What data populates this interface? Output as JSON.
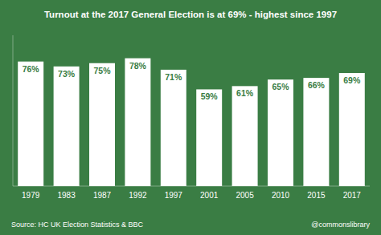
{
  "chart_data": {
    "type": "bar",
    "title": "Turnout at the 2017 General Election is at 69% - highest since 1997",
    "categories": [
      "1979",
      "1983",
      "1987",
      "1992",
      "1997",
      "2001",
      "2005",
      "2010",
      "2015",
      "2017"
    ],
    "values": [
      76,
      73,
      75,
      78,
      71,
      59,
      61,
      65,
      66,
      69
    ],
    "value_labels": [
      "76%",
      "73%",
      "75%",
      "78%",
      "71%",
      "59%",
      "61%",
      "65%",
      "66%",
      "69%"
    ],
    "data_labels": true,
    "color": "#ffffff",
    "ylim": [
      0,
      92
    ],
    "tick_labels": "x",
    "grid": false,
    "annotations": [
      "Source: HC UK Election Statistics & BBC",
      "@commonslibrary"
    ]
  }
}
